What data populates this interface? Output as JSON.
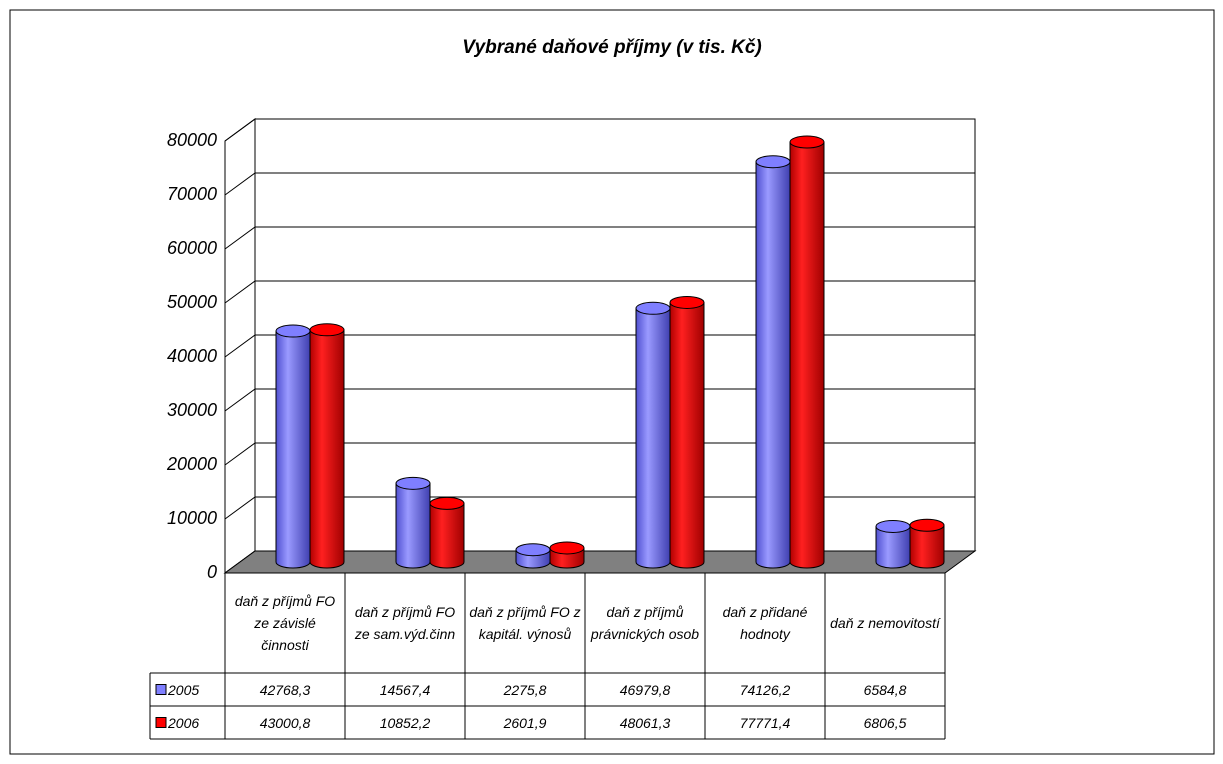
{
  "chart_data": {
    "type": "bar3d",
    "title": "Vybrané daňové příjmy (v tis. Kč)",
    "categories": [
      "daň z příjmů FO ze závislé činnosti",
      "daň z příjmů FO ze sam.výd.činn",
      "daň z příjmů FO z kapitál. výnosů",
      "daň z příjmů právnických osob",
      "daň z přidané hodnoty",
      "daň z nemovitostí"
    ],
    "series": [
      {
        "name": "2005",
        "color": "#7f7fff",
        "values": [
          42768.3,
          14567.4,
          2275.8,
          46979.8,
          74126.2,
          6584.8
        ],
        "value_labels": [
          "42768,3",
          "14567,4",
          "2275,8",
          "46979,8",
          "74126,2",
          "6584,8"
        ]
      },
      {
        "name": "2006",
        "color": "#ff0000",
        "values": [
          43000.8,
          10852.2,
          2601.9,
          48061.3,
          77771.4,
          6806.5
        ],
        "value_labels": [
          "43000,8",
          "10852,2",
          "2601,9",
          "48061,3",
          "77771,4",
          "6806,5"
        ]
      }
    ],
    "ylim": [
      0,
      80000
    ],
    "yticks": [
      0,
      10000,
      20000,
      30000,
      40000,
      50000,
      60000,
      70000,
      80000
    ],
    "grid": true,
    "data_table": true
  }
}
